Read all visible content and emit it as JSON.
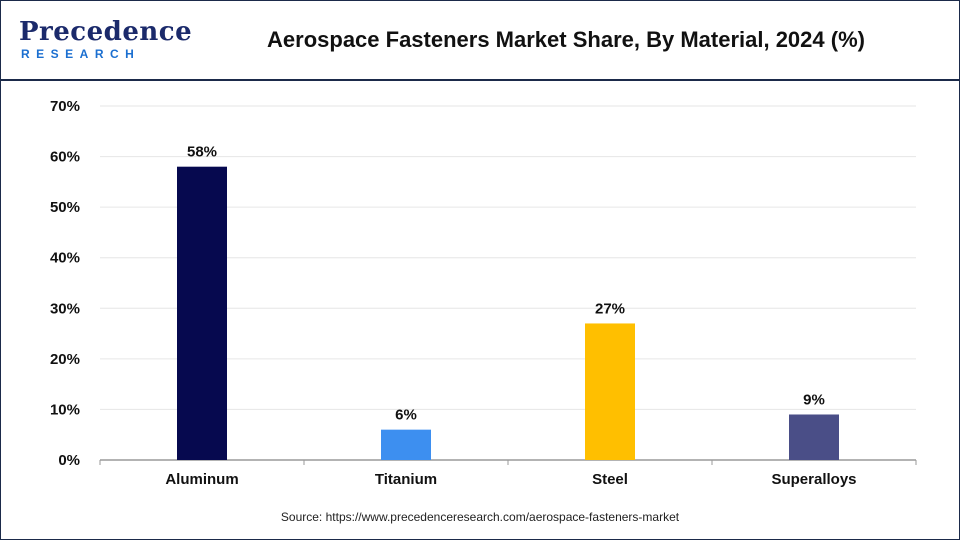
{
  "header": {
    "logo_top": "Precedence",
    "logo_bottom": "RESEARCH",
    "title": "Aerospace Fasteners Market Share, By Material, 2024 (%)"
  },
  "source": "Source: https://www.precedenceresearch.com/aerospace-fasteners-market",
  "chart_data": {
    "type": "bar",
    "title": "Aerospace Fasteners Market Share, By Material, 2024 (%)",
    "xlabel": "",
    "ylabel": "",
    "categories": [
      "Aluminum",
      "Titanium",
      "Steel",
      "Superalloys"
    ],
    "values": [
      58,
      6,
      27,
      9
    ],
    "data_labels": [
      "58%",
      "6%",
      "27%",
      "9%"
    ],
    "colors": [
      "#06094f",
      "#3d8ff0",
      "#ffbf00",
      "#4a4e87"
    ],
    "ylim": [
      0,
      70
    ],
    "yticks": [
      0,
      10,
      20,
      30,
      40,
      50,
      60,
      70
    ],
    "ytick_labels": [
      "0%",
      "10%",
      "20%",
      "30%",
      "40%",
      "50%",
      "60%",
      "70%"
    ],
    "grid": true,
    "legend": "none"
  }
}
